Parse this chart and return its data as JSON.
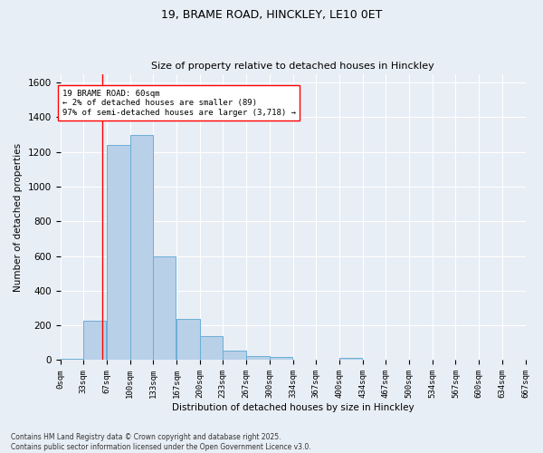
{
  "title1": "19, BRAME ROAD, HINCKLEY, LE10 0ET",
  "title2": "Size of property relative to detached houses in Hinckley",
  "xlabel": "Distribution of detached houses by size in Hinckley",
  "ylabel": "Number of detached properties",
  "footer1": "Contains HM Land Registry data © Crown copyright and database right 2025.",
  "footer2": "Contains public sector information licensed under the Open Government Licence v3.0.",
  "annotation_line1": "19 BRAME ROAD: 60sqm",
  "annotation_line2": "← 2% of detached houses are smaller (89)",
  "annotation_line3": "97% of semi-detached houses are larger (3,718) →",
  "bar_left_edges": [
    0,
    33,
    67,
    100,
    133,
    167,
    200,
    233,
    267,
    300,
    334,
    367,
    400,
    434,
    467,
    500,
    534,
    567,
    600,
    634
  ],
  "bar_heights": [
    10,
    225,
    1240,
    1300,
    600,
    240,
    140,
    55,
    25,
    20,
    0,
    0,
    15,
    0,
    0,
    0,
    0,
    0,
    0,
    0
  ],
  "bin_width": 33,
  "bar_color": "#b8d0e8",
  "bar_edge_color": "#6baed6",
  "bg_color": "#e8eef5",
  "grid_color": "#ffffff",
  "red_line_x": 60,
  "ylim": [
    0,
    1650
  ],
  "yticks": [
    0,
    200,
    400,
    600,
    800,
    1000,
    1200,
    1400,
    1600
  ],
  "xtick_labels": [
    "0sqm",
    "33sqm",
    "67sqm",
    "100sqm",
    "133sqm",
    "167sqm",
    "200sqm",
    "233sqm",
    "267sqm",
    "300sqm",
    "334sqm",
    "367sqm",
    "400sqm",
    "434sqm",
    "467sqm",
    "500sqm",
    "534sqm",
    "567sqm",
    "600sqm",
    "634sqm",
    "667sqm"
  ],
  "xtick_positions": [
    0,
    33,
    67,
    100,
    133,
    167,
    200,
    233,
    267,
    300,
    334,
    367,
    400,
    434,
    467,
    500,
    534,
    567,
    600,
    634,
    667
  ]
}
